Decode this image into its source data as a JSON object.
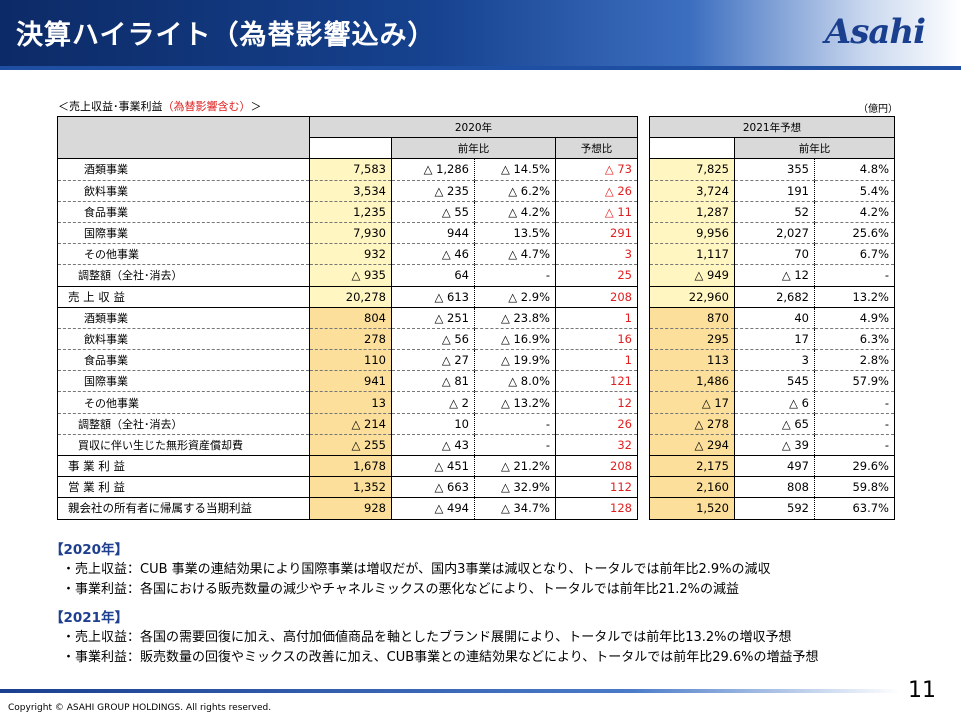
{
  "header": {
    "title": "決算ハイライト（為替影響込み）",
    "logo": "Asahi"
  },
  "table": {
    "caption_prefix": "＜売上収益･事業利益",
    "caption_note": "（為替影響含む）",
    "caption_suffix": "＞",
    "unit": "（億円）",
    "header_2020": "2020年",
    "header_2021": "2021年予想",
    "sub_yoy": "前年比",
    "sub_plan": "予想比",
    "sub_yoy21": "前年比",
    "rows": [
      {
        "label": "酒類事業",
        "v20": "7,583",
        "yoy": "△ 1,286",
        "pct": "△ 14.5%",
        "plan": "△ 73",
        "v21": "7,825",
        "yoy21": "355",
        "pct21": "4.8%"
      },
      {
        "label": "飲料事業",
        "v20": "3,534",
        "yoy": "△ 235",
        "pct": "△ 6.2%",
        "plan": "△ 26",
        "v21": "3,724",
        "yoy21": "191",
        "pct21": "5.4%"
      },
      {
        "label": "食品事業",
        "v20": "1,235",
        "yoy": "△ 55",
        "pct": "△ 4.2%",
        "plan": "△ 11",
        "v21": "1,287",
        "yoy21": "52",
        "pct21": "4.2%"
      },
      {
        "label": "国際事業",
        "v20": "7,930",
        "yoy": "944",
        "pct": "13.5%",
        "plan": "291",
        "v21": "9,956",
        "yoy21": "2,027",
        "pct21": "25.6%"
      },
      {
        "label": "その他事業",
        "v20": "932",
        "yoy": "△ 46",
        "pct": "△ 4.7%",
        "plan": "3",
        "v21": "1,117",
        "yoy21": "70",
        "pct21": "6.7%"
      },
      {
        "label": "調整額（全社･消去）",
        "v20": "△ 935",
        "yoy": "64",
        "pct": "-",
        "plan": "25",
        "v21": "△ 949",
        "yoy21": "△ 12",
        "pct21": "-"
      },
      {
        "label": "売 上 収 益",
        "v20": "20,278",
        "yoy": "△ 613",
        "pct": "△ 2.9%",
        "plan": "208",
        "v21": "22,960",
        "yoy21": "2,682",
        "pct21": "13.2%"
      },
      {
        "label": "酒類事業",
        "v20": "804",
        "yoy": "△ 251",
        "pct": "△ 23.8%",
        "plan": "1",
        "v21": "870",
        "yoy21": "40",
        "pct21": "4.9%"
      },
      {
        "label": "飲料事業",
        "v20": "278",
        "yoy": "△ 56",
        "pct": "△ 16.9%",
        "plan": "16",
        "v21": "295",
        "yoy21": "17",
        "pct21": "6.3%"
      },
      {
        "label": "食品事業",
        "v20": "110",
        "yoy": "△ 27",
        "pct": "△ 19.9%",
        "plan": "1",
        "v21": "113",
        "yoy21": "3",
        "pct21": "2.8%"
      },
      {
        "label": "国際事業",
        "v20": "941",
        "yoy": "△ 81",
        "pct": "△ 8.0%",
        "plan": "121",
        "v21": "1,486",
        "yoy21": "545",
        "pct21": "57.9%"
      },
      {
        "label": "その他事業",
        "v20": "13",
        "yoy": "△ 2",
        "pct": "△ 13.2%",
        "plan": "12",
        "v21": "△ 17",
        "yoy21": "△ 6",
        "pct21": "-"
      },
      {
        "label": "調整額（全社･消去）",
        "v20": "△ 214",
        "yoy": "10",
        "pct": "-",
        "plan": "26",
        "v21": "△ 278",
        "yoy21": "△ 65",
        "pct21": "-"
      },
      {
        "label": "買収に伴い生じた無形資産償却費",
        "v20": "△ 255",
        "yoy": "△ 43",
        "pct": "-",
        "plan": "32",
        "v21": "△ 294",
        "yoy21": "△ 39",
        "pct21": "-"
      },
      {
        "label": "事 業 利 益",
        "v20": "1,678",
        "yoy": "△ 451",
        "pct": "△ 21.2%",
        "plan": "208",
        "v21": "2,175",
        "yoy21": "497",
        "pct21": "29.6%"
      },
      {
        "label": "営 業 利 益",
        "v20": "1,352",
        "yoy": "△ 663",
        "pct": "△ 32.9%",
        "plan": "112",
        "v21": "2,160",
        "yoy21": "808",
        "pct21": "59.8%"
      },
      {
        "label": "親会社の所有者に帰属する当期利益",
        "v20": "928",
        "yoy": "△ 494",
        "pct": "△ 34.7%",
        "plan": "128",
        "v21": "1,520",
        "yoy21": "592",
        "pct21": "63.7%"
      }
    ]
  },
  "notes": {
    "y2020_title": "【2020年】",
    "y2020_items": [
      "・売上収益：CUB 事業の連結効果により国際事業は増収だが、国内3事業は減収となり、トータルでは前年比2.9%の減収",
      "・事業利益：各国における販売数量の減少やチャネルミックスの悪化などにより、トータルでは前年比21.2%の減益"
    ],
    "y2021_title": "【2021年】",
    "y2021_items": [
      "・売上収益：各国の需要回復に加え、高付加価値商品を軸としたブランド展開により、トータルでは前年比13.2%の増収予想",
      "・事業利益：販売数量の回復やミックスの改善に加え、CUB事業との連結効果などにより、トータルでは前年比29.6%の増益予想"
    ]
  },
  "footer": {
    "copyright": "Copyright © ASAHI GROUP HOLDINGS. All rights reserved.",
    "page_number": "11"
  },
  "colors": {
    "header_navy": "#0c2a66",
    "accent_red": "#e02020",
    "highlight_light": "#fff6c2",
    "highlight_dark": "#fbdf9a"
  }
}
